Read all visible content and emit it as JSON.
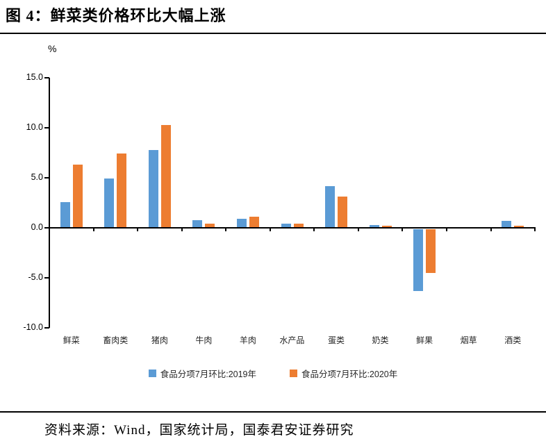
{
  "header": {
    "title": "图 4：鲜菜类价格环比大幅上涨"
  },
  "footer": {
    "source": "资料来源：Wind，国家统计局，国泰君安证券研究"
  },
  "chart_data": {
    "type": "bar",
    "unit_label": "%",
    "categories": [
      "鲜菜",
      "畜肉类",
      "猪肉",
      "牛肉",
      "羊肉",
      "水产品",
      "蛋类",
      "奶类",
      "鲜果",
      "烟草",
      "酒类"
    ],
    "series": [
      {
        "name": "食品分项7月环比:2019年",
        "color": "#5B9BD5",
        "values": [
          2.6,
          4.9,
          7.8,
          0.8,
          0.9,
          0.4,
          4.2,
          0.3,
          -6.2,
          0.0,
          0.7
        ]
      },
      {
        "name": "食品分项7月环比:2020年",
        "color": "#ED7D31",
        "values": [
          6.3,
          7.4,
          10.3,
          0.4,
          1.1,
          0.4,
          3.1,
          0.2,
          -4.4,
          0.0,
          0.2
        ]
      }
    ],
    "ylim": [
      -10,
      15
    ],
    "ytick_step": 5,
    "ytick_labels": [
      "15.0",
      "10.0",
      "5.0",
      "0.0",
      "-5.0",
      "-10.0"
    ],
    "grid": false,
    "legend_position": "bottom",
    "axis_color": "#000000"
  }
}
